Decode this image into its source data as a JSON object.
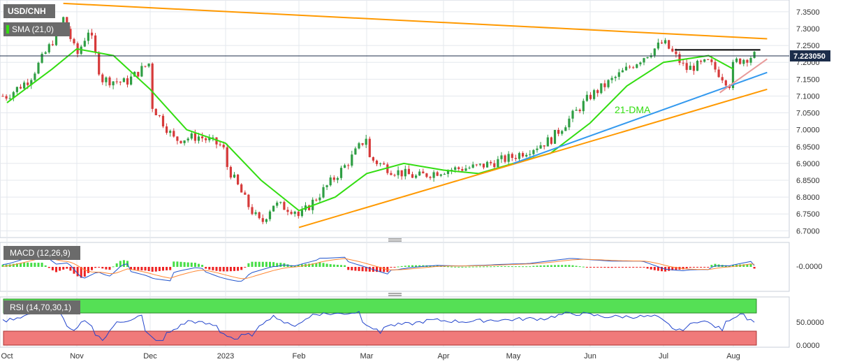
{
  "chart_data": [
    {
      "type": "candlestick",
      "panel": "price",
      "title": "USD/CNH",
      "indicator_label": "SMA (21,0)",
      "last_price": "7.223050",
      "annotation": "21-DMA",
      "ylim": [
        6.68,
        7.385
      ],
      "y_ticks": [
        "7.3500",
        "7.3000",
        "7.2500",
        "7.2000",
        "7.1500",
        "7.1000",
        "7.0500",
        "7.0000",
        "6.9500",
        "6.9000",
        "6.8500",
        "6.8000",
        "6.7500",
        "6.7000"
      ],
      "x_ticks": [
        "Oct",
        "Nov",
        "Dec",
        "2023",
        "Feb",
        "Mar",
        "Apr",
        "May",
        "Jun",
        "Jul",
        "Aug"
      ],
      "close_series": [
        {
          "date": "Oct",
          "value": 7.1
        },
        {
          "date": "Oct-10",
          "value": 7.15
        },
        {
          "date": "Oct-20",
          "value": 7.26
        },
        {
          "date": "Oct-25",
          "value": 7.33
        },
        {
          "date": "Nov",
          "value": 7.22
        },
        {
          "date": "Nov-05",
          "value": 7.3
        },
        {
          "date": "Nov-10",
          "value": 7.15
        },
        {
          "date": "Nov-20",
          "value": 7.14
        },
        {
          "date": "Nov-30",
          "value": 7.2
        },
        {
          "date": "Dec",
          "value": 7.08
        },
        {
          "date": "Dec-10",
          "value": 6.97
        },
        {
          "date": "Dec-20",
          "value": 6.98
        },
        {
          "date": "Dec-30",
          "value": 6.95
        },
        {
          "date": "2023",
          "value": 6.9
        },
        {
          "date": "Jan-10",
          "value": 6.77
        },
        {
          "date": "Jan-15",
          "value": 6.72
        },
        {
          "date": "Jan-20",
          "value": 6.78
        },
        {
          "date": "Jan-30",
          "value": 6.76
        },
        {
          "date": "Feb",
          "value": 6.74
        },
        {
          "date": "Feb-10",
          "value": 6.82
        },
        {
          "date": "Feb-20",
          "value": 6.9
        },
        {
          "date": "Feb-28",
          "value": 6.98
        },
        {
          "date": "Mar",
          "value": 6.92
        },
        {
          "date": "Mar-10",
          "value": 6.88
        },
        {
          "date": "Mar-20",
          "value": 6.86
        },
        {
          "date": "Apr",
          "value": 6.88
        },
        {
          "date": "Apr-15",
          "value": 6.89
        },
        {
          "date": "May",
          "value": 6.92
        },
        {
          "date": "May-15",
          "value": 6.97
        },
        {
          "date": "Jun",
          "value": 7.1
        },
        {
          "date": "Jun-15",
          "value": 7.18
        },
        {
          "date": "Jul",
          "value": 7.26
        },
        {
          "date": "Jul-10",
          "value": 7.18
        },
        {
          "date": "Jul-20",
          "value": 7.2
        },
        {
          "date": "Jul-30",
          "value": 7.13
        },
        {
          "date": "Aug",
          "value": 7.2
        },
        {
          "date": "Aug-09",
          "value": 7.22
        }
      ],
      "sma_series": [
        {
          "date": "Oct",
          "value": 7.08
        },
        {
          "date": "Oct-20",
          "value": 7.18
        },
        {
          "date": "Nov",
          "value": 7.24
        },
        {
          "date": "Nov-15",
          "value": 7.22
        },
        {
          "date": "Dec",
          "value": 7.12
        },
        {
          "date": "Dec-15",
          "value": 7.0
        },
        {
          "date": "2023",
          "value": 6.96
        },
        {
          "date": "Jan-15",
          "value": 6.85
        },
        {
          "date": "Feb",
          "value": 6.76
        },
        {
          "date": "Feb-15",
          "value": 6.8
        },
        {
          "date": "Mar",
          "value": 6.87
        },
        {
          "date": "Mar-15",
          "value": 6.9
        },
        {
          "date": "Apr",
          "value": 6.88
        },
        {
          "date": "Apr-15",
          "value": 6.87
        },
        {
          "date": "May",
          "value": 6.9
        },
        {
          "date": "May-15",
          "value": 6.93
        },
        {
          "date": "Jun",
          "value": 7.02
        },
        {
          "date": "Jun-15",
          "value": 7.13
        },
        {
          "date": "Jul",
          "value": 7.2
        },
        {
          "date": "Jul-20",
          "value": 7.22
        },
        {
          "date": "Aug",
          "value": 7.18
        }
      ],
      "trendlines": [
        {
          "color": "#ff9900",
          "from": {
            "date": "Oct-25",
            "value": 7.375
          },
          "to": {
            "date": "Aug-15",
            "value": 7.27
          }
        },
        {
          "color": "#ff9900",
          "from": {
            "date": "Feb",
            "value": 6.71
          },
          "to": {
            "date": "Aug-15",
            "value": 7.12
          }
        },
        {
          "color": "#3399ee",
          "from": {
            "date": "May",
            "value": 6.9
          },
          "to": {
            "date": "Aug-15",
            "value": 7.17
          }
        },
        {
          "color": "#e89a9a",
          "from": {
            "date": "Jul-25",
            "value": 7.11
          },
          "to": {
            "date": "Aug-15",
            "value": 7.21
          }
        },
        {
          "color": "#000000",
          "from": {
            "date": "Jul-05",
            "value": 7.237
          },
          "to": {
            "date": "Aug-12",
            "value": 7.237
          }
        }
      ]
    },
    {
      "type": "macd",
      "panel": "macd",
      "indicator_label": "MACD (12,26,9)",
      "y_ticks": [
        "-0.0000"
      ]
    },
    {
      "type": "rsi",
      "panel": "rsi",
      "indicator_label": "RSI (14,70,30,1)",
      "y_ticks": [
        "50.0000",
        "0.0000"
      ],
      "overbought": 70,
      "oversold": 30
    }
  ],
  "colors": {
    "up": "#2f9e44",
    "down": "#d63a3a",
    "sma": "#33dd11",
    "grid": "#e4e8ee",
    "price_tag": "#1c2d4a"
  }
}
